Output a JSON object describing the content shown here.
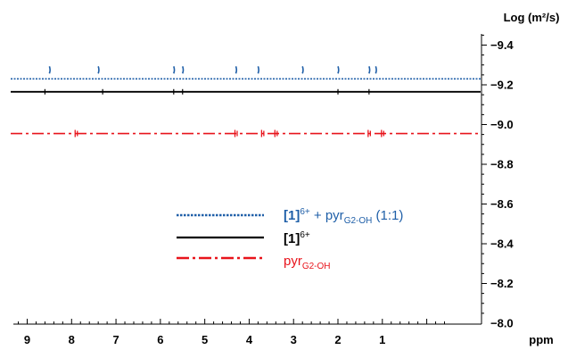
{
  "chart_data": {
    "type": "line",
    "xlabel": "ppm",
    "ylabel": "Log (m²/s)",
    "xlim": [
      9.7,
      -0.5
    ],
    "ylim": [
      -8.0,
      -9.55
    ],
    "x_tick_labels": [
      "9",
      "8",
      "7",
      "6",
      "5",
      "4",
      "3",
      "2",
      "1"
    ],
    "x_ticks": [
      9,
      8,
      7,
      6,
      5,
      4,
      3,
      2,
      1
    ],
    "y_tick_labels": [
      "−9.4",
      "−9.2",
      "−9.0",
      "−8.8",
      "−8.6",
      "−8.4",
      "−8.2",
      "−8.0"
    ],
    "y_ticks": [
      -9.4,
      -9.2,
      -9.0,
      -8.8,
      -8.6,
      -8.4,
      -8.2,
      -8.0
    ],
    "grid": false,
    "series": [
      {
        "label_main": "[1]",
        "label_sup": "6+",
        "label_rest": " + pyr",
        "label_sub": "G2-OH",
        "label_tail": " (1:1)",
        "color": "#1f5fa8",
        "style": "dotted",
        "log_d": -9.23,
        "peaks": [
          8.5,
          7.4,
          5.7,
          5.5,
          4.3,
          3.8,
          2.8,
          2.0,
          1.3,
          1.15
        ]
      },
      {
        "label_main": "[1]",
        "label_sup": "6+",
        "color": "#000000",
        "style": "solid",
        "log_d": -9.165,
        "peaks": [
          8.6,
          7.3,
          5.7,
          5.5,
          2.0,
          1.3
        ]
      },
      {
        "label_main": "pyr",
        "label_sub": "G2-OH",
        "color": "#e8141c",
        "style": "dashdot",
        "log_d": -8.955,
        "peaks": [
          7.9,
          4.3,
          3.7,
          3.4,
          1.3,
          1.0
        ]
      }
    ]
  }
}
